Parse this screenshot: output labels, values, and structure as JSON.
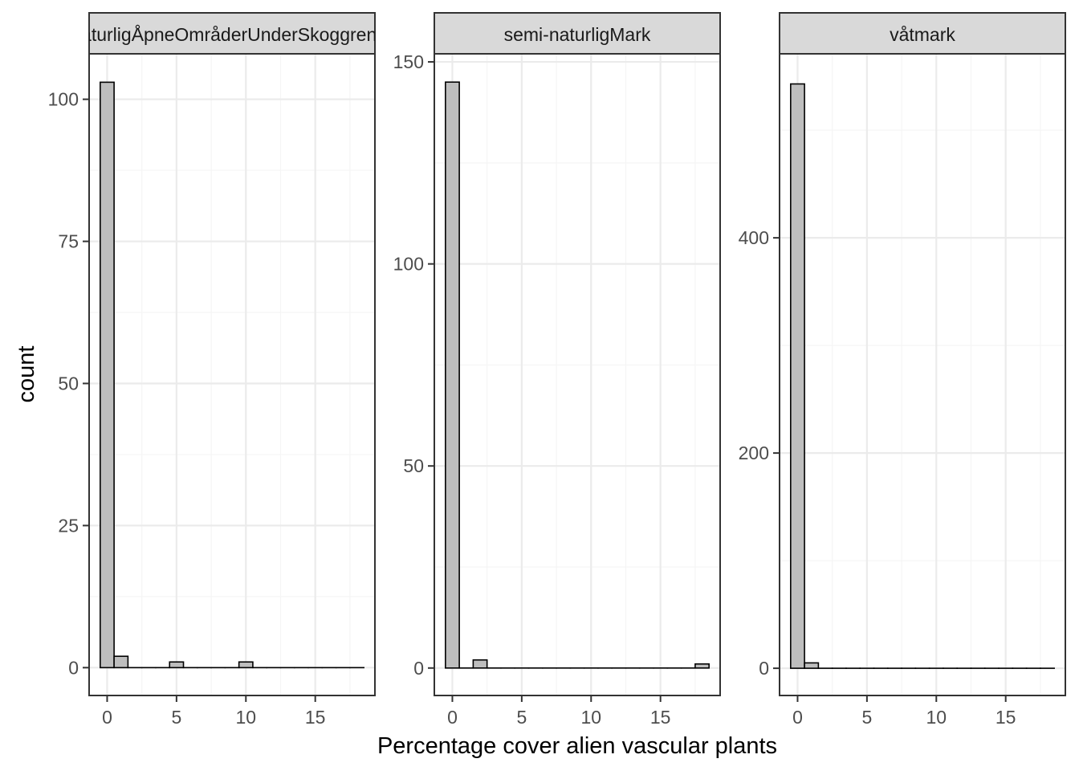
{
  "xlabel": "Percentage cover alien vascular plants",
  "ylabel": "count",
  "style": {
    "bar_fill": "#bebebe",
    "bar_stroke": "#000000",
    "grid_major": "#ebebeb",
    "grid_minor": "#f5f5f5",
    "strip_fill": "#d9d9d9",
    "panel_border": "#333333",
    "tick_text": "#4d4d4d"
  },
  "chart_data": [
    {
      "type": "bar",
      "title": "NaturligÅpneOmråderUnderSkoggrensa",
      "bin_width": 1,
      "x": [
        0,
        1,
        2,
        3,
        4,
        5,
        6,
        7,
        8,
        9,
        10,
        11,
        12,
        13,
        14,
        15,
        16,
        17,
        18
      ],
      "values": [
        103,
        2,
        0,
        0,
        0,
        1,
        0,
        0,
        0,
        0,
        1,
        0,
        0,
        0,
        0,
        0,
        0,
        0,
        0
      ],
      "xlim": [
        -1.3,
        19.3
      ],
      "ylim": [
        -4.9,
        108
      ],
      "xticks": [
        0,
        5,
        10,
        15
      ],
      "yticks": [
        0,
        25,
        50,
        75,
        100
      ],
      "grid": true
    },
    {
      "type": "bar",
      "title": "semi-naturligMark",
      "bin_width": 1,
      "x": [
        0,
        1,
        2,
        3,
        4,
        5,
        6,
        7,
        8,
        9,
        10,
        11,
        12,
        13,
        14,
        15,
        16,
        17,
        18
      ],
      "values": [
        145,
        0,
        2,
        0,
        0,
        0,
        0,
        0,
        0,
        0,
        0,
        0,
        0,
        0,
        0,
        0,
        0,
        0,
        1
      ],
      "xlim": [
        -1.3,
        19.3
      ],
      "ylim": [
        -6.8,
        152
      ],
      "xticks": [
        0,
        5,
        10,
        15
      ],
      "yticks": [
        0,
        50,
        100,
        150
      ],
      "grid": true
    },
    {
      "type": "bar",
      "title": "våtmark",
      "bin_width": 1,
      "x": [
        0,
        1,
        2,
        3,
        4,
        5,
        6,
        7,
        8,
        9,
        10,
        11,
        12,
        13,
        14,
        15,
        16,
        17,
        18
      ],
      "values": [
        543,
        5,
        0,
        0,
        0,
        0,
        0,
        0,
        0,
        0,
        0,
        0,
        0,
        0,
        0,
        0,
        0,
        0,
        0
      ],
      "xlim": [
        -1.3,
        19.3
      ],
      "ylim": [
        -25.3,
        571
      ],
      "xticks": [
        0,
        5,
        10,
        15
      ],
      "yticks": [
        0,
        200,
        400
      ],
      "grid": true
    }
  ]
}
